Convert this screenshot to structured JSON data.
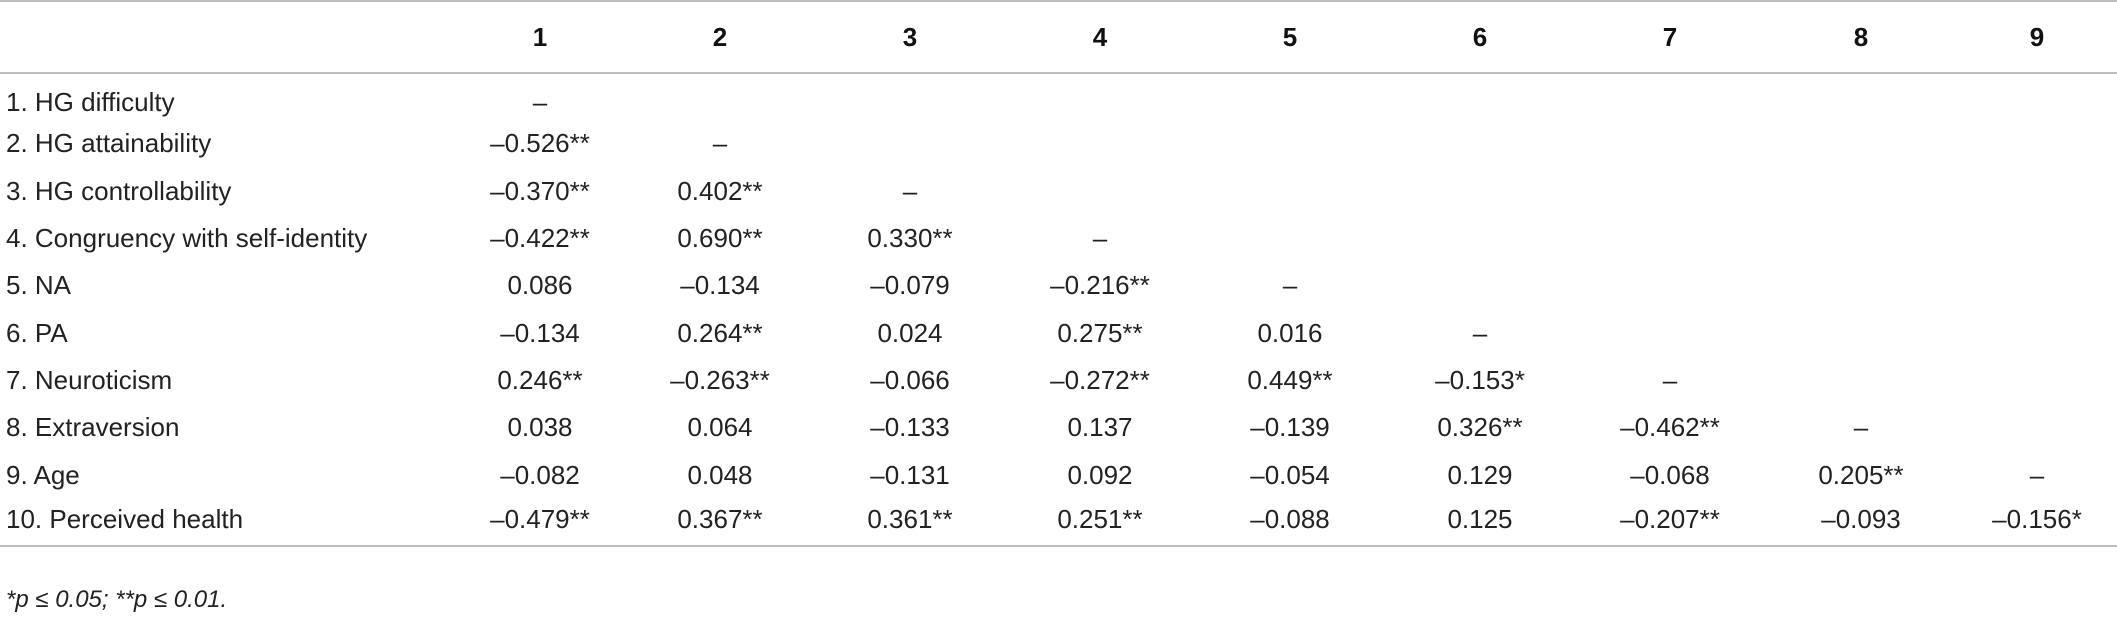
{
  "table": {
    "columns": [
      "",
      "1",
      "2",
      "3",
      "4",
      "5",
      "6",
      "7",
      "8",
      "9"
    ],
    "rows": [
      {
        "label": "1. HG difficulty",
        "cells": [
          "–",
          "",
          "",
          "",
          "",
          "",
          "",
          "",
          ""
        ]
      },
      {
        "label": "2. HG attainability",
        "cells": [
          "–0.526**",
          "–",
          "",
          "",
          "",
          "",
          "",
          "",
          ""
        ]
      },
      {
        "label": "3. HG controllability",
        "cells": [
          "–0.370**",
          "0.402**",
          "–",
          "",
          "",
          "",
          "",
          "",
          ""
        ]
      },
      {
        "label": "4. Congruency with self-identity",
        "cells": [
          "–0.422**",
          "0.690**",
          "0.330**",
          "–",
          "",
          "",
          "",
          "",
          ""
        ]
      },
      {
        "label": "5. NA",
        "cells": [
          "0.086",
          "–0.134",
          "–0.079",
          "–0.216**",
          "–",
          "",
          "",
          "",
          ""
        ]
      },
      {
        "label": "6. PA",
        "cells": [
          "–0.134",
          "0.264**",
          "0.024",
          "0.275**",
          "0.016",
          "–",
          "",
          "",
          ""
        ]
      },
      {
        "label": "7. Neuroticism",
        "cells": [
          "0.246**",
          "–0.263**",
          "–0.066",
          "–0.272**",
          "0.449**",
          "–0.153*",
          "–",
          "",
          ""
        ]
      },
      {
        "label": "8. Extraversion",
        "cells": [
          "0.038",
          "0.064",
          "–0.133",
          "0.137",
          "–0.139",
          "0.326**",
          "–0.462**",
          "–",
          ""
        ]
      },
      {
        "label": "9. Age",
        "cells": [
          "–0.082",
          "0.048",
          "–0.131",
          "0.092",
          "–0.054",
          "0.129",
          "–0.068",
          "0.205**",
          "–"
        ]
      },
      {
        "label": "10. Perceived health",
        "cells": [
          "–0.479**",
          "0.367**",
          "0.361**",
          "0.251**",
          "–0.088",
          "0.125",
          "–0.207**",
          "–0.093",
          "–0.156*"
        ]
      }
    ]
  },
  "footnote": "*p ≤ 0.05; **p ≤ 0.01."
}
